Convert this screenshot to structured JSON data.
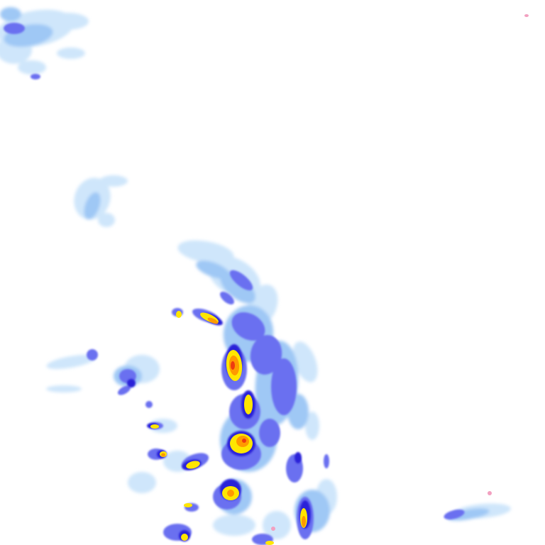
{
  "map": {
    "layer": "precipitation-radar",
    "background": "#ffffff",
    "intensity_colors": {
      "very_light": "#cfe6fb",
      "light": "#9fc8f5",
      "moderate": "#6a6ff0",
      "heavy": "#2b20d8",
      "very_heavy": "#ffe600",
      "intense": "#ff9a00",
      "extreme": "#ee3a10",
      "mixed": "#f2a0c0"
    }
  }
}
